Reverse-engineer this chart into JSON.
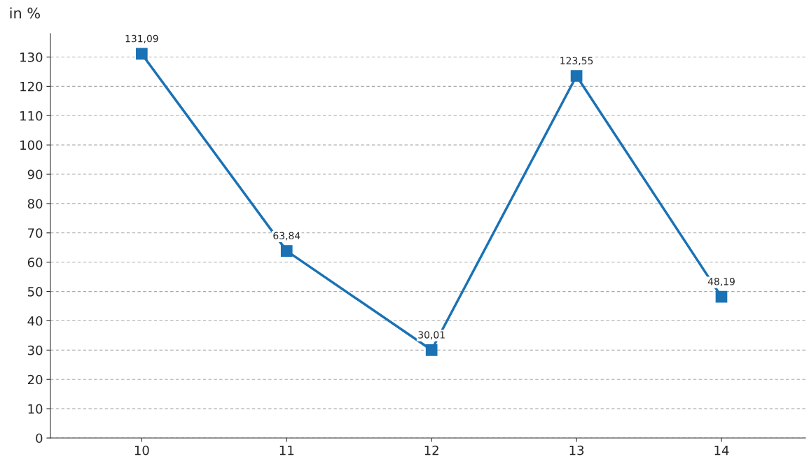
{
  "chart_data": {
    "type": "line",
    "ylabel": "in %",
    "categories": [
      "10",
      "11",
      "12",
      "13",
      "14"
    ],
    "series": [
      {
        "color": "#1a72b5",
        "values": [
          131.09,
          63.84,
          30.01,
          123.55,
          48.19
        ],
        "value_labels": [
          "131,09",
          "63,84",
          "30,01",
          "123,55",
          "48,19"
        ]
      }
    ],
    "ylim": [
      0,
      138
    ],
    "yticks": [
      0,
      10,
      20,
      30,
      40,
      50,
      60,
      70,
      80,
      90,
      100,
      110,
      120,
      130
    ],
    "grid": "y",
    "marker": "square",
    "line_style": "solid"
  }
}
